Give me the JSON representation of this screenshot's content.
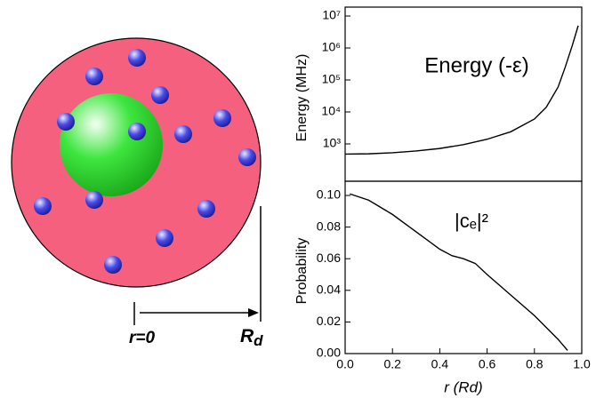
{
  "diagram": {
    "origin_label": "r=0",
    "radius_label": "R",
    "radius_subscript": "d"
  },
  "chart_data": [
    {
      "type": "line",
      "ylabel": "Energy (MHz)",
      "annotation": "Energy (-ε)",
      "ylog": true,
      "xlim": [
        0,
        1
      ],
      "ylim": [
        68,
        19000000
      ],
      "yticks": [
        {
          "value": 1000,
          "label": "10³"
        },
        {
          "value": 10000,
          "label": "10⁴"
        },
        {
          "value": 100000,
          "label": "10⁵"
        },
        {
          "value": 1000000,
          "label": "10⁶"
        },
        {
          "value": 10000000,
          "label": "10⁷"
        }
      ],
      "x": [
        0,
        0.1,
        0.2,
        0.3,
        0.4,
        0.5,
        0.6,
        0.7,
        0.8,
        0.85,
        0.9,
        0.93,
        0.96,
        0.985
      ],
      "series": [
        {
          "color": "#000000",
          "values": [
            480,
            490,
            530,
            600,
            720,
            950,
            1400,
            2400,
            6000,
            14000,
            60000,
            250000,
            1200000,
            5000000
          ]
        }
      ]
    },
    {
      "type": "line",
      "ylabel": "Probability",
      "annotation": "|cₑ|²",
      "xlabel": "r (Rd)",
      "xlim": [
        0,
        1
      ],
      "ylim": [
        0,
        0.109
      ],
      "xticks": [
        {
          "value": 0,
          "label": "0.0"
        },
        0.2,
        0.4,
        0.6,
        0.8,
        {
          "value": 1,
          "label": "1.0"
        }
      ],
      "yticks": [
        {
          "value": 0,
          "label": "0.00"
        },
        {
          "value": 0.02,
          "label": "0.02"
        },
        {
          "value": 0.04,
          "label": "0.04"
        },
        {
          "value": 0.06,
          "label": "0.06"
        },
        {
          "value": 0.08,
          "label": "0.08"
        },
        {
          "value": 0.1,
          "label": "0.10"
        }
      ],
      "x": [
        0.02,
        0.1,
        0.2,
        0.3,
        0.4,
        0.45,
        0.5,
        0.55,
        0.6,
        0.7,
        0.8,
        0.9,
        0.94
      ],
      "series": [
        {
          "color": "#000000",
          "values": [
            0.101,
            0.097,
            0.088,
            0.077,
            0.066,
            0.062,
            0.06,
            0.057,
            0.05,
            0.037,
            0.024,
            0.009,
            0.002
          ]
        }
      ]
    }
  ]
}
